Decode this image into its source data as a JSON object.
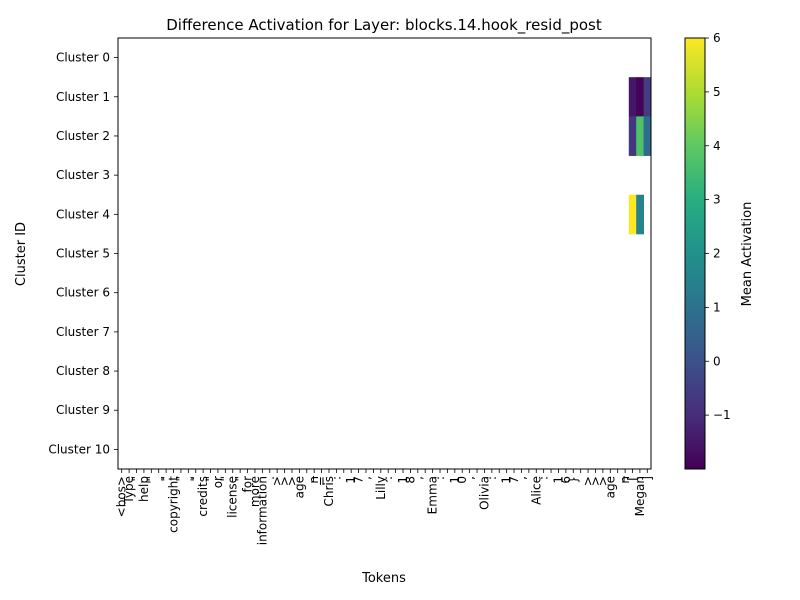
{
  "chart_data": {
    "type": "heatmap",
    "title": "Difference Activation for Layer: blocks.14.hook_resid_post",
    "xlabel": "Tokens",
    "ylabel": "Cluster ID",
    "colorbar_label": "Mean Activation",
    "colormap": "viridis",
    "vmin": -2.0,
    "vmax": 6.0,
    "colorbar_ticks": [
      -1,
      0,
      1,
      2,
      3,
      4,
      5,
      6
    ],
    "clusters": [
      "Cluster 0",
      "Cluster 1",
      "Cluster 2",
      "Cluster 3",
      "Cluster 4",
      "Cluster 5",
      "Cluster 6",
      "Cluster 7",
      "Cluster 8",
      "Cluster 9",
      "Cluster 10"
    ],
    "tokens": [
      "<bos>",
      "Type",
      "\"",
      "help",
      "\"",
      ",",
      "\"",
      "copyright",
      "\"",
      ",",
      "\"",
      "credits",
      "\"",
      "or",
      "\"",
      "license",
      "\"",
      "for",
      "more",
      "information",
      ".",
      ">",
      ">",
      ">",
      "age",
      "_",
      "n",
      "=",
      "Chris",
      ":",
      " ",
      "1",
      "7",
      ",",
      " ",
      "Lilly",
      ":",
      " ",
      "1",
      "8",
      ",",
      " ",
      "Emma",
      ":",
      " ",
      "1",
      "0",
      ",",
      " ",
      "Olivia",
      ":",
      " ",
      "1",
      "7",
      ",",
      " ",
      "Alice",
      ":",
      " ",
      "1",
      "6",
      "}",
      "\n",
      ">",
      ">",
      ">",
      "age",
      "_",
      "n",
      "[",
      "Megan",
      "]"
    ],
    "cells": [
      {
        "cluster": 1,
        "token_index": 69,
        "value": -1.5
      },
      {
        "cluster": 1,
        "token_index": 70,
        "value": -1.95
      },
      {
        "cluster": 1,
        "token_index": 71,
        "value": -0.6
      },
      {
        "cluster": 2,
        "token_index": 69,
        "value": -0.75
      },
      {
        "cluster": 2,
        "token_index": 70,
        "value": 3.7
      },
      {
        "cluster": 2,
        "token_index": 71,
        "value": 0.85
      },
      {
        "cluster": 4,
        "token_index": 69,
        "value": 6.0
      },
      {
        "cluster": 4,
        "token_index": 70,
        "value": 1.5
      }
    ]
  }
}
